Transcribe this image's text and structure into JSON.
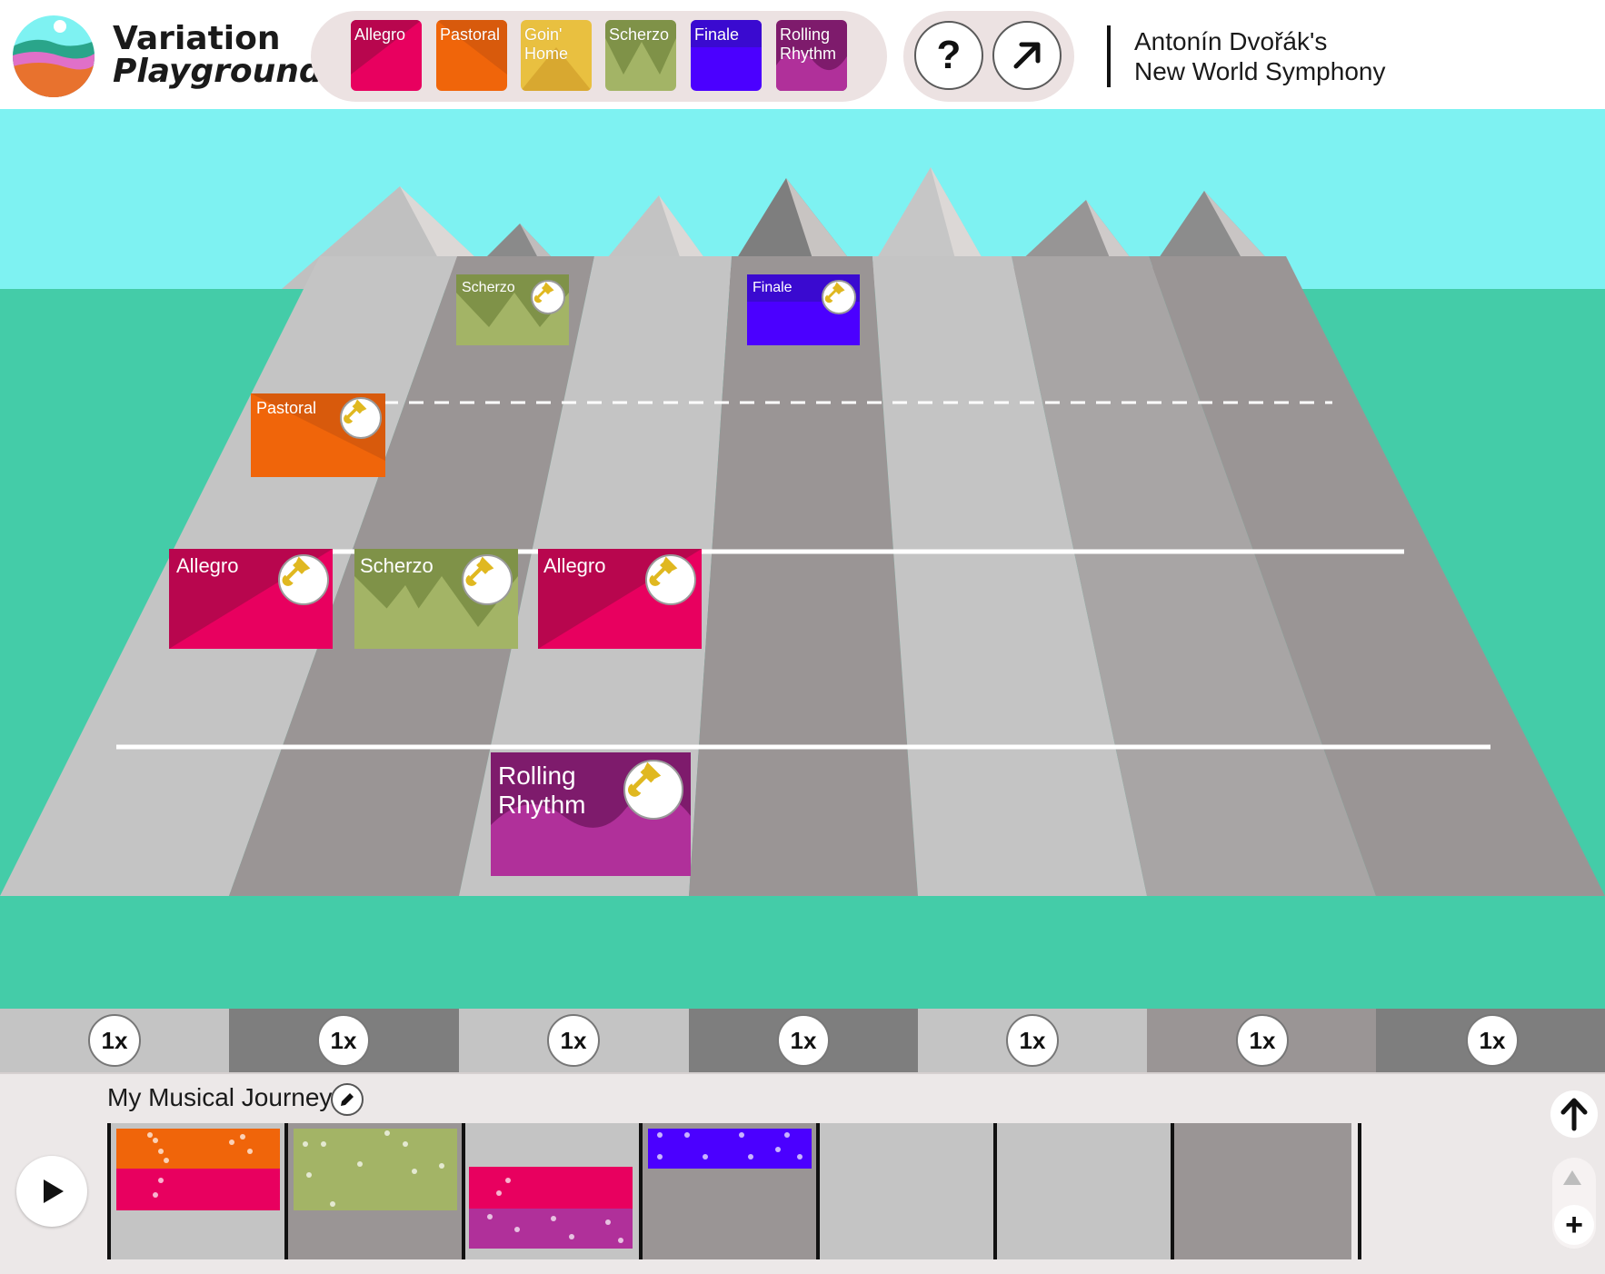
{
  "app": {
    "logo_line1": "Variation",
    "logo_line2": "Playground",
    "composer_line1": "Antonín Dvořák's",
    "composer_line2": "New World Symphony"
  },
  "palette": [
    {
      "id": "allegro",
      "label": "Allegro",
      "color": "#e8005f",
      "shade": "#b8064e"
    },
    {
      "id": "pastoral",
      "label": "Pastoral",
      "color": "#f0650a",
      "shade": "#d85a0c"
    },
    {
      "id": "goin-home",
      "label": "Goin' Home",
      "color": "#e9c040",
      "shade": "#d8a830"
    },
    {
      "id": "scherzo",
      "label": "Scherzo",
      "color": "#a3b466",
      "shade": "#7f9248"
    },
    {
      "id": "finale",
      "label": "Finale",
      "color": "#4b00ff",
      "shade": "#3a0ad0"
    },
    {
      "id": "rolling-rhythm",
      "label": "Rolling Rhythm",
      "color": "#b0309a",
      "shade": "#7e1b6c"
    }
  ],
  "toolbar": {
    "help_label": "?",
    "share_icon": "arrow-up-right-icon"
  },
  "board": {
    "tiles": [
      {
        "label": "Scherzo",
        "icon": "trumpet-icon"
      },
      {
        "label": "Finale",
        "icon": "trumpet-icon"
      },
      {
        "label": "Pastoral",
        "icon": "trumpet-icon"
      },
      {
        "label": "Allegro",
        "icon": "trumpet-icon"
      },
      {
        "label": "Scherzo",
        "icon": "trumpet-icon"
      },
      {
        "label": "Allegro",
        "icon": "trumpet-icon"
      },
      {
        "label": "Rolling",
        "label2": "Rhythm",
        "icon": "trumpet-icon"
      }
    ],
    "speeds": [
      "1x",
      "1x",
      "1x",
      "1x",
      "1x",
      "1x",
      "1x"
    ],
    "sky_color": "#7ef2f2",
    "ground_color": "#44cca8"
  },
  "journey": {
    "title": "My Musical Journey",
    "edit_icon": "pencil-icon",
    "play_icon": "play-icon",
    "up_icon": "arrow-up-icon",
    "zoom_in_label": "+"
  }
}
